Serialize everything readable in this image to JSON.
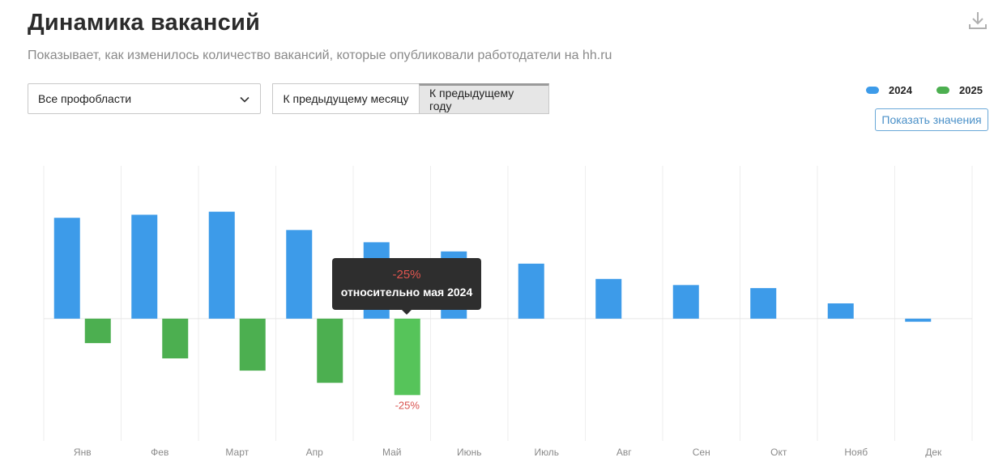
{
  "header": {
    "title": "Динамика вакансий",
    "subtitle": "Показывает, как изменилось количество вакансий, которые опубликовали работодатели на hh.ru",
    "download_icon": "download-icon"
  },
  "filters": {
    "profarea_value": "Все профобласти",
    "compare_month_label": "К предыдущему месяцу",
    "compare_year_label": "К предыдущему году",
    "active_compare": "year"
  },
  "legend": [
    {
      "name": "2024",
      "color": "#3d9be9"
    },
    {
      "name": "2025",
      "color": "#4caf50"
    }
  ],
  "show_values_label": "Показать значения",
  "tooltip": {
    "value": "-25%",
    "text": "относительно мая 2024"
  },
  "chart_data": {
    "type": "bar",
    "categories": [
      "Янв",
      "Фев",
      "Март",
      "Апр",
      "Май",
      "Июнь",
      "Июль",
      "Авг",
      "Сен",
      "Окт",
      "Нояб",
      "Дек"
    ],
    "series": [
      {
        "name": "2024",
        "color": "#3d9be9",
        "values": [
          33,
          34,
          35,
          29,
          25,
          22,
          18,
          13,
          11,
          10,
          5,
          -1
        ]
      },
      {
        "name": "2025",
        "color": "#4caf50",
        "highlight_color": "#56c45a",
        "values": [
          -8,
          -13,
          -17,
          -21,
          -25,
          null,
          null,
          null,
          null,
          null,
          null,
          null
        ]
      }
    ],
    "ylim": [
      -40,
      50
    ],
    "grid": true,
    "xlabel": "",
    "ylabel": "",
    "highlight": {
      "category": "Май",
      "series": "2025",
      "label": "-25%",
      "label_color": "#d9534f"
    }
  }
}
